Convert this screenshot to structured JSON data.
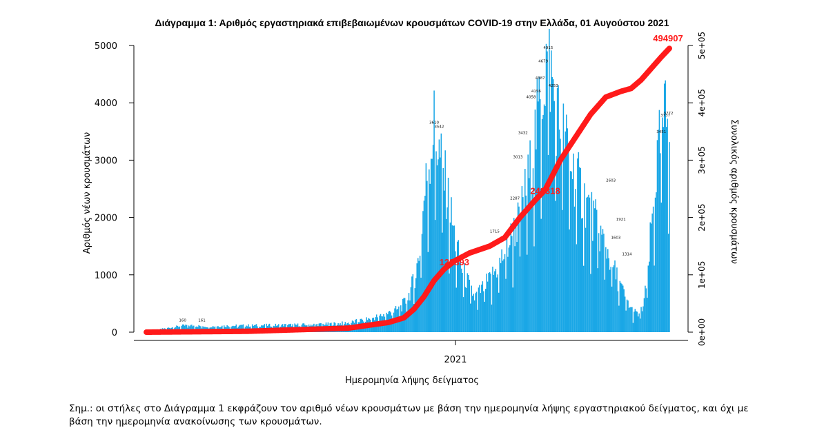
{
  "chart_data": {
    "type": "bar+line",
    "title": "Διάγραμμα 1: Αριθμός εργαστηριακά επιβεβαιωμένων κρουσμάτων COVID-19 στην Ελλάδα, 01 Αυγούστου 2021",
    "xlabel": "Ημερομηνία λήψης δείγματος",
    "ylabel": "Αριθμός νέων κρουσμάτων",
    "ylabel_right": "Συνολικός αριθμός κρουσμάτων",
    "x_tick_labels": [
      "2021"
    ],
    "y_ticks": [
      0,
      1000,
      2000,
      3000,
      4000,
      5000
    ],
    "y_tick_labels": [
      "0",
      "1000",
      "2000",
      "3000",
      "4000",
      "5000"
    ],
    "y2_ticks": [
      0,
      100000,
      200000,
      300000,
      400000,
      500000
    ],
    "y2_tick_labels": [
      "0e+00",
      "1e+05",
      "2e+05",
      "3e+05",
      "4e+05",
      "5e+05"
    ],
    "ylim": [
      0,
      5000
    ],
    "y2lim": [
      0,
      500000
    ],
    "bar_color": "#1aa7e6",
    "line_color": "#ff1a1a",
    "x_axis_days": 518,
    "new_cases_anchors": [
      [
        0,
        10
      ],
      [
        20,
        70
      ],
      [
        40,
        120
      ],
      [
        60,
        100
      ],
      [
        80,
        110
      ],
      [
        100,
        115
      ],
      [
        120,
        120
      ],
      [
        140,
        125
      ],
      [
        160,
        130
      ],
      [
        180,
        140
      ],
      [
        200,
        160
      ],
      [
        220,
        230
      ],
      [
        235,
        300
      ],
      [
        250,
        400
      ],
      [
        258,
        550
      ],
      [
        265,
        900
      ],
      [
        270,
        1300
      ],
      [
        275,
        2300
      ],
      [
        280,
        3000
      ],
      [
        285,
        3610
      ],
      [
        290,
        3100
      ],
      [
        295,
        2700
      ],
      [
        300,
        2200
      ],
      [
        305,
        1700
      ],
      [
        310,
        1250
      ],
      [
        315,
        1000
      ],
      [
        320,
        800
      ],
      [
        325,
        600
      ],
      [
        330,
        700
      ],
      [
        340,
        900
      ],
      [
        350,
        1200
      ],
      [
        360,
        1600
      ],
      [
        370,
        2000
      ],
      [
        380,
        2800
      ],
      [
        385,
        3400
      ],
      [
        390,
        4000
      ],
      [
        395,
        4600
      ],
      [
        398,
        4915
      ],
      [
        402,
        4300
      ],
      [
        408,
        3700
      ],
      [
        415,
        3300
      ],
      [
        425,
        2700
      ],
      [
        435,
        2300
      ],
      [
        445,
        1900
      ],
      [
        455,
        1500
      ],
      [
        465,
        1000
      ],
      [
        472,
        700
      ],
      [
        480,
        400
      ],
      [
        487,
        300
      ],
      [
        492,
        450
      ],
      [
        496,
        900
      ],
      [
        500,
        1800
      ],
      [
        505,
        2800
      ],
      [
        510,
        3451
      ],
      [
        514,
        3737
      ],
      [
        517,
        3772
      ]
    ],
    "cumulative_anchors": [
      [
        0,
        0
      ],
      [
        100,
        1500
      ],
      [
        200,
        7000
      ],
      [
        240,
        17000
      ],
      [
        255,
        25000
      ],
      [
        265,
        40000
      ],
      [
        275,
        62000
      ],
      [
        285,
        90000
      ],
      [
        295,
        110000
      ],
      [
        305,
        123893
      ],
      [
        320,
        138000
      ],
      [
        340,
        150000
      ],
      [
        355,
        165000
      ],
      [
        370,
        200000
      ],
      [
        385,
        230000
      ],
      [
        395,
        248318
      ],
      [
        410,
        300000
      ],
      [
        425,
        340000
      ],
      [
        440,
        380000
      ],
      [
        455,
        410000
      ],
      [
        470,
        420000
      ],
      [
        480,
        425000
      ],
      [
        490,
        440000
      ],
      [
        500,
        460000
      ],
      [
        510,
        480000
      ],
      [
        518,
        494907
      ]
    ],
    "cumulative_labels": [
      {
        "day": 305,
        "value": 123893,
        "text": "123893"
      },
      {
        "day": 395,
        "value": 248318,
        "text": "248318"
      },
      {
        "day": 518,
        "value": 494907,
        "text": "494907"
      }
    ],
    "bar_value_labels": [
      {
        "day": 285,
        "text": "3610"
      },
      {
        "day": 290,
        "text": "3542"
      },
      {
        "day": 398,
        "text": "4915"
      },
      {
        "day": 393,
        "text": "4679"
      },
      {
        "day": 390,
        "text": "4387"
      },
      {
        "day": 403,
        "text": "4253"
      },
      {
        "day": 386,
        "text": "4156"
      },
      {
        "day": 381,
        "text": "4058"
      },
      {
        "day": 373,
        "text": "3432"
      },
      {
        "day": 368,
        "text": "3013"
      },
      {
        "day": 365,
        "text": "2287"
      },
      {
        "day": 345,
        "text": "1715"
      },
      {
        "day": 510,
        "text": "3451"
      },
      {
        "day": 514,
        "text": "3737"
      },
      {
        "day": 517,
        "text": "3772"
      },
      {
        "day": 476,
        "text": "1314"
      },
      {
        "day": 470,
        "text": "1921"
      },
      {
        "day": 460,
        "text": "2603"
      },
      {
        "day": 465,
        "text": "1603"
      },
      {
        "day": 36,
        "text": "160"
      },
      {
        "day": 55,
        "text": "161"
      }
    ]
  },
  "note_text": "Σημ.: οι στήλες στο Διάγραμμα 1 εκφράζουν τον αριθμό νέων κρουσμάτων με βάση την ημερομηνία λήψης εργαστηριακού δείγματος, και όχι με βάση την ημερομηνία ανακοίνωσης των κρουσμάτων."
}
